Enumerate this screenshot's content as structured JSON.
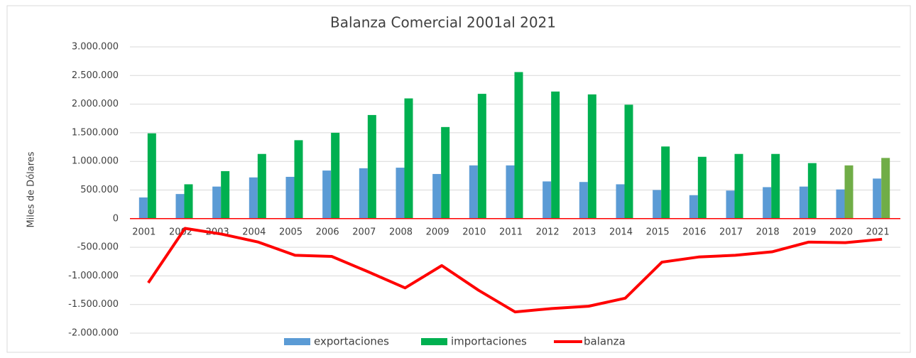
{
  "chart_data": {
    "type": "bar-line",
    "title": "Balanza Comercial 2001al 2021",
    "y_label": "Miles de Dólares",
    "categories": [
      "2001",
      "2002",
      "2003",
      "2004",
      "2005",
      "2006",
      "2007",
      "2008",
      "2009",
      "2010",
      "2011",
      "2012",
      "2013",
      "2014",
      "2015",
      "2016",
      "2017",
      "2018",
      "2019",
      "2020",
      "2021"
    ],
    "series": [
      {
        "name": "exportaciones",
        "type": "bar",
        "color": "#5b9bd5",
        "values": [
          370000,
          430000,
          560000,
          720000,
          730000,
          840000,
          880000,
          890000,
          780000,
          930000,
          930000,
          650000,
          640000,
          600000,
          500000,
          410000,
          490000,
          550000,
          560000,
          510000,
          700000
        ]
      },
      {
        "name": "importaciones",
        "type": "bar",
        "color": "#00b050",
        "point_colors": [
          "#00b050",
          "#00b050",
          "#00b050",
          "#00b050",
          "#00b050",
          "#00b050",
          "#00b050",
          "#00b050",
          "#00b050",
          "#00b050",
          "#00b050",
          "#00b050",
          "#00b050",
          "#00b050",
          "#00b050",
          "#00b050",
          "#00b050",
          "#00b050",
          "#00b050",
          "#70ad47",
          "#70ad47"
        ],
        "values": [
          1490000,
          600000,
          830000,
          1130000,
          1370000,
          1500000,
          1810000,
          2100000,
          1600000,
          2180000,
          2560000,
          2220000,
          2170000,
          1990000,
          1260000,
          1080000,
          1130000,
          1130000,
          970000,
          930000,
          1060000
        ]
      },
      {
        "name": "balanza",
        "type": "line",
        "color": "#ff0000",
        "values": [
          -1120000,
          -170000,
          -270000,
          -410000,
          -640000,
          -660000,
          -930000,
          -1210000,
          -820000,
          -1250000,
          -1630000,
          -1570000,
          -1530000,
          -1390000,
          -760000,
          -670000,
          -640000,
          -580000,
          -410000,
          -420000,
          -360000
        ]
      }
    ],
    "ylim": [
      -2000000,
      3000000
    ],
    "yticks": [
      {
        "value": -2000000,
        "label": "-2.000.000"
      },
      {
        "value": -1500000,
        "label": "-1.500.000"
      },
      {
        "value": -1000000,
        "label": "-1.000.000"
      },
      {
        "value": -500000,
        "label": "-500.000"
      },
      0,
      {
        "value": 500000,
        "label": "500.000"
      },
      {
        "value": 1000000,
        "label": "1.000.000"
      },
      {
        "value": 1500000,
        "label": "1.500.000"
      },
      {
        "value": 2000000,
        "label": "2.000.000"
      },
      {
        "value": 2500000,
        "label": "2.500.000"
      },
      {
        "value": 3000000,
        "label": "3.000.000"
      }
    ],
    "grid": true,
    "legend": "bottom"
  }
}
